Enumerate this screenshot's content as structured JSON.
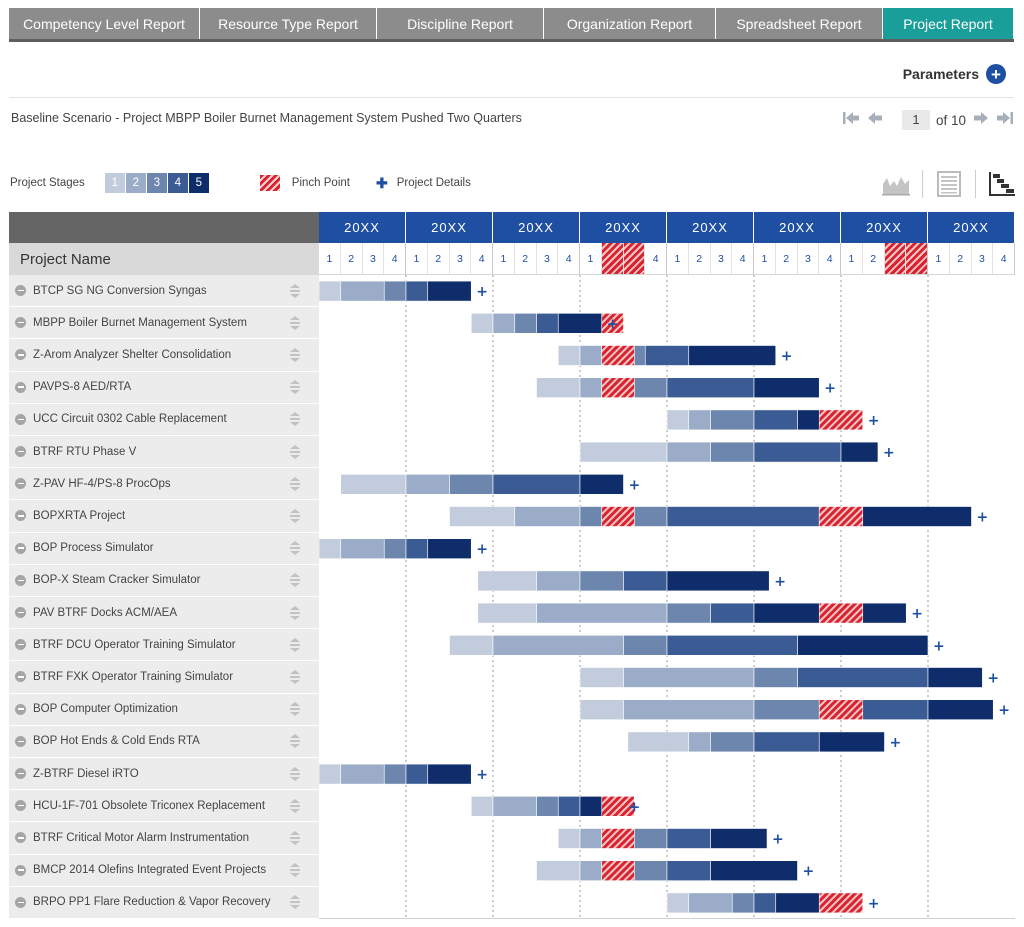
{
  "tabs": [
    {
      "label": "Competency Level Report",
      "width": 191,
      "active": false
    },
    {
      "label": "Resource Type Report",
      "width": 177,
      "active": false
    },
    {
      "label": "Discipline Report",
      "width": 167,
      "active": false
    },
    {
      "label": "Organization Report",
      "width": 172,
      "active": false
    },
    {
      "label": "Spreadsheet Report",
      "width": 167,
      "active": false
    },
    {
      "label": "Project Report",
      "width": 131,
      "active": true
    }
  ],
  "parameters_label": "Parameters",
  "scenario_title": "Baseline Scenario - Project MBPP Boiler Burnet Management System Pushed Two Quarters",
  "pager": {
    "current": "1",
    "total_text": "of 10"
  },
  "legend": {
    "stages_label": "Project Stages",
    "stages": [
      {
        "label": "1",
        "color": "#c3ccdc"
      },
      {
        "label": "2",
        "color": "#9aacc7"
      },
      {
        "label": "3",
        "color": "#6d86ad"
      },
      {
        "label": "4",
        "color": "#3b5b94"
      },
      {
        "label": "5",
        "color": "#0f2d6b"
      }
    ],
    "pinch_label": "Pinch Point",
    "details_label": "Project Details"
  },
  "chart": {
    "name_header": "Project Name",
    "years": [
      "20XX",
      "20XX",
      "20XX",
      "20XX",
      "20XX",
      "20XX",
      "20XX",
      "20XX"
    ],
    "quarters": [
      "1",
      "2",
      "3",
      "4"
    ],
    "highlight_quarters": [
      13,
      14,
      26,
      27
    ],
    "projects": [
      {
        "name": "BTCP SG NG Conversion Syngas",
        "segments": [
          [
            0,
            1,
            1
          ],
          [
            1,
            3,
            2
          ],
          [
            3,
            4,
            3
          ],
          [
            4,
            5,
            4
          ],
          [
            5,
            7,
            5
          ]
        ],
        "pinch": []
      },
      {
        "name": "MBPP Boiler Burnet Management System",
        "segments": [
          [
            7,
            8,
            1
          ],
          [
            8,
            9,
            2
          ],
          [
            9,
            10,
            3
          ],
          [
            10,
            11,
            4
          ],
          [
            11,
            13,
            5
          ]
        ],
        "pinch": [
          [
            13,
            14
          ]
        ]
      },
      {
        "name": "Z-Arom Analyzer Shelter Consolidation",
        "segments": [
          [
            11,
            12,
            1
          ],
          [
            12,
            13,
            2
          ],
          [
            13,
            15,
            3
          ],
          [
            15,
            17,
            4
          ],
          [
            17,
            21,
            5
          ]
        ],
        "pinch": [
          [
            13,
            14.5
          ]
        ]
      },
      {
        "name": "PAVPS-8 AED/RTA",
        "segments": [
          [
            10,
            12,
            1
          ],
          [
            12,
            13,
            2
          ],
          [
            13,
            16,
            3
          ],
          [
            16,
            20,
            4
          ],
          [
            20,
            23,
            5
          ]
        ],
        "pinch": [
          [
            13,
            14.5
          ]
        ]
      },
      {
        "name": "UCC Circuit 0302 Cable Replacement",
        "segments": [
          [
            16,
            17,
            1
          ],
          [
            17,
            18,
            2
          ],
          [
            18,
            20,
            3
          ],
          [
            20,
            22,
            4
          ],
          [
            22,
            25,
            5
          ]
        ],
        "pinch": [
          [
            23,
            25
          ]
        ]
      },
      {
        "name": "BTRF RTU Phase V",
        "segments": [
          [
            12,
            16,
            1
          ],
          [
            16,
            18,
            2
          ],
          [
            18,
            20,
            3
          ],
          [
            20,
            24,
            4
          ],
          [
            24,
            25.7,
            5
          ]
        ],
        "pinch": []
      },
      {
        "name": "Z-PAV HF-4/PS-8 ProcOps",
        "segments": [
          [
            1,
            4,
            1
          ],
          [
            4,
            6,
            2
          ],
          [
            6,
            8,
            3
          ],
          [
            8,
            12,
            4
          ],
          [
            12,
            14,
            5
          ]
        ],
        "pinch": []
      },
      {
        "name": "BOPXRTA Project",
        "segments": [
          [
            6,
            9,
            1
          ],
          [
            9,
            12,
            2
          ],
          [
            12,
            13,
            3
          ],
          [
            13,
            16,
            3
          ],
          [
            16,
            23,
            4
          ],
          [
            23,
            30,
            5
          ]
        ],
        "pinch": [
          [
            13,
            14.5
          ],
          [
            23,
            25
          ]
        ]
      },
      {
        "name": "BOP Process Simulator",
        "segments": [
          [
            0,
            1,
            1
          ],
          [
            1,
            3,
            2
          ],
          [
            3,
            4,
            3
          ],
          [
            4,
            5,
            4
          ],
          [
            5,
            7,
            5
          ]
        ],
        "pinch": []
      },
      {
        "name": "BOP-X Steam Cracker Simulator",
        "segments": [
          [
            7.3,
            10,
            1
          ],
          [
            10,
            12,
            2
          ],
          [
            12,
            14,
            3
          ],
          [
            14,
            16,
            4
          ],
          [
            16,
            20.7,
            5
          ]
        ],
        "pinch": []
      },
      {
        "name": "PAV BTRF Docks ACM/AEA",
        "segments": [
          [
            7.3,
            10,
            1
          ],
          [
            10,
            16,
            2
          ],
          [
            16,
            18,
            3
          ],
          [
            18,
            20,
            4
          ],
          [
            20,
            27,
            5
          ]
        ],
        "pinch": [
          [
            23,
            25
          ]
        ]
      },
      {
        "name": "BTRF DCU Operator Training Simulator",
        "segments": [
          [
            6,
            8,
            1
          ],
          [
            8,
            14,
            2
          ],
          [
            14,
            16,
            3
          ],
          [
            16,
            22,
            4
          ],
          [
            22,
            28,
            5
          ]
        ],
        "pinch": []
      },
      {
        "name": "BTRF FXK Operator Training Simulator",
        "segments": [
          [
            12,
            14,
            1
          ],
          [
            14,
            20,
            2
          ],
          [
            20,
            22,
            3
          ],
          [
            22,
            28,
            4
          ],
          [
            28,
            30.5,
            5
          ]
        ],
        "pinch": []
      },
      {
        "name": "BOP Computer Optimization",
        "segments": [
          [
            12,
            14,
            1
          ],
          [
            14,
            20,
            2
          ],
          [
            20,
            23,
            3
          ],
          [
            23,
            28,
            4
          ],
          [
            28,
            31,
            5
          ]
        ],
        "pinch": [
          [
            23,
            25
          ]
        ]
      },
      {
        "name": "BOP Hot Ends & Cold Ends RTA",
        "segments": [
          [
            14.2,
            17,
            1
          ],
          [
            17,
            18,
            2
          ],
          [
            18,
            20,
            3
          ],
          [
            20,
            23,
            4
          ],
          [
            23,
            26,
            5
          ]
        ],
        "pinch": []
      },
      {
        "name": "Z-BTRF Diesel iRTO",
        "segments": [
          [
            0,
            1,
            1
          ],
          [
            1,
            3,
            2
          ],
          [
            3,
            4,
            3
          ],
          [
            4,
            5,
            4
          ],
          [
            5,
            7,
            5
          ]
        ],
        "pinch": []
      },
      {
        "name": "HCU-1F-701 Obsolete Triconex Replacement",
        "segments": [
          [
            7,
            8,
            1
          ],
          [
            8,
            10,
            2
          ],
          [
            10,
            11,
            3
          ],
          [
            11,
            12,
            4
          ],
          [
            12,
            14,
            5
          ]
        ],
        "pinch": [
          [
            13,
            14.5
          ]
        ]
      },
      {
        "name": "BTRF Critical Motor Alarm Instrumentation",
        "segments": [
          [
            11,
            12,
            1
          ],
          [
            12,
            13,
            2
          ],
          [
            13,
            16,
            3
          ],
          [
            16,
            18,
            4
          ],
          [
            18,
            20.6,
            5
          ]
        ],
        "pinch": [
          [
            13,
            14.5
          ]
        ]
      },
      {
        "name": "BMCP 2014 Olefins Integrated Event Projects",
        "segments": [
          [
            10,
            12,
            1
          ],
          [
            12,
            13,
            2
          ],
          [
            13,
            16,
            3
          ],
          [
            16,
            18,
            4
          ],
          [
            18,
            22,
            5
          ]
        ],
        "pinch": [
          [
            13,
            14.5
          ]
        ]
      },
      {
        "name": "BRPO PP1 Flare Reduction & Vapor Recovery",
        "segments": [
          [
            16,
            17,
            1
          ],
          [
            17,
            19,
            2
          ],
          [
            19,
            20,
            3
          ],
          [
            20,
            21,
            4
          ],
          [
            21,
            25,
            5
          ]
        ],
        "pinch": [
          [
            23,
            25
          ]
        ]
      }
    ]
  }
}
